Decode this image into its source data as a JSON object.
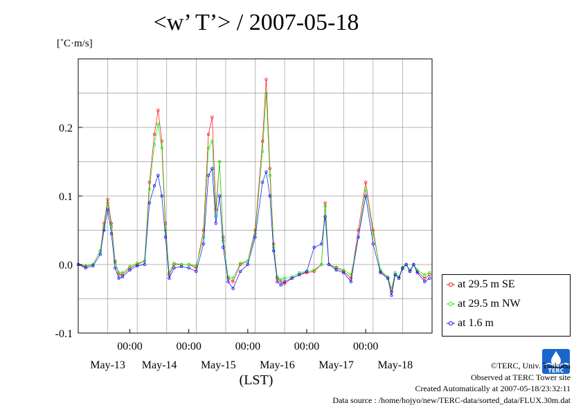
{
  "title": "<w’ T’> / 2007-05-18",
  "unit_label": "[˚C·m/s]",
  "legend": [
    {
      "name": "at 29.5 m SE",
      "color": "#ff0000"
    },
    {
      "name": "at 29.5 m NW",
      "color": "#00ee00"
    },
    {
      "name": "at 1.6 m",
      "color": "#0000ff"
    }
  ],
  "footer": {
    "copyright": "©TERC, Univ. Tsukuba",
    "observed": "Observed at TERC Tower site",
    "created": "Created Automatically at 2007-05-18/23:32:11",
    "source": "Data source : /home/hojyo/new/TERC-data/sorted_data/FLUX.30m.dat"
  },
  "logo_text": "TERC",
  "chart_data": {
    "type": "line",
    "xlabel": "(LST)",
    "ylabel": "",
    "title": "<w’ T’> / 2007-05-18",
    "xlim": [
      0,
      144
    ],
    "ylim": [
      -0.1,
      0.3
    ],
    "yticks": [
      -0.1,
      0.0,
      0.1,
      0.2
    ],
    "ytick_labels": [
      "-0.1",
      "0.0",
      "0.1",
      "0.2"
    ],
    "xticks": [
      {
        "x": 21,
        "time": "00:00",
        "date": "May-14"
      },
      {
        "x": 45,
        "time": "00:00",
        "date": "May-15"
      },
      {
        "x": 69,
        "time": "00:00",
        "date": "May-16"
      },
      {
        "x": 93,
        "time": "00:00",
        "date": "May-17"
      },
      {
        "x": 117,
        "time": "00:00",
        "date": "May-18"
      }
    ],
    "first_date": {
      "x": 12,
      "date": "May-13"
    },
    "grid": true,
    "legend_position": "right",
    "x": [
      0,
      3,
      6,
      9,
      10.5,
      12,
      13.5,
      15,
      16.5,
      18,
      21,
      24,
      27,
      29,
      31,
      32.5,
      34,
      35.5,
      37,
      39,
      42,
      45,
      48,
      51,
      53,
      54.5,
      56,
      57.5,
      59,
      61,
      63,
      66,
      69,
      72,
      75,
      76.5,
      78,
      79.5,
      81,
      82.5,
      84,
      87,
      90,
      93,
      96,
      99,
      100.5,
      102,
      105,
      108,
      111,
      114,
      117,
      120,
      123,
      126,
      127.5,
      129,
      130.5,
      132,
      133.5,
      135,
      136.5,
      138,
      141,
      143
    ],
    "series": [
      {
        "name": "at 29.5 m SE",
        "color": "#ff0000",
        "values": [
          0.0,
          -0.003,
          0.0,
          0.02,
          0.06,
          0.095,
          0.06,
          0.005,
          -0.015,
          -0.015,
          -0.005,
          0.0,
          0.005,
          0.12,
          0.19,
          0.225,
          0.18,
          0.06,
          -0.015,
          0.0,
          0.0,
          0.0,
          -0.005,
          0.05,
          0.19,
          0.215,
          0.08,
          0.15,
          0.04,
          -0.02,
          -0.025,
          0.0,
          0.005,
          0.05,
          0.18,
          0.27,
          0.14,
          0.03,
          -0.02,
          -0.025,
          -0.028,
          -0.02,
          -0.015,
          -0.012,
          -0.01,
          0.0,
          0.09,
          0.0,
          -0.005,
          -0.01,
          -0.02,
          0.05,
          0.12,
          0.05,
          -0.01,
          -0.02,
          -0.04,
          -0.015,
          -0.02,
          -0.005,
          0.0,
          -0.01,
          0.0,
          -0.01,
          -0.02,
          -0.015
        ]
      },
      {
        "name": "at 29.5 m NW",
        "color": "#00ee00",
        "values": [
          0.0,
          -0.002,
          0.0,
          0.02,
          0.055,
          0.09,
          0.055,
          0.003,
          -0.012,
          -0.012,
          -0.003,
          0.002,
          0.005,
          0.11,
          0.175,
          0.205,
          0.17,
          0.05,
          -0.012,
          0.002,
          0.0,
          0.0,
          -0.002,
          0.04,
          0.17,
          0.18,
          0.07,
          0.15,
          0.035,
          -0.018,
          -0.02,
          0.002,
          0.005,
          0.045,
          0.165,
          0.25,
          0.13,
          0.025,
          -0.018,
          -0.022,
          -0.02,
          -0.018,
          -0.012,
          -0.01,
          -0.008,
          0.0,
          0.085,
          0.0,
          -0.004,
          -0.008,
          -0.015,
          0.04,
          0.11,
          0.045,
          -0.008,
          -0.018,
          -0.035,
          -0.012,
          -0.018,
          -0.004,
          0.0,
          -0.008,
          0.0,
          -0.008,
          -0.015,
          -0.012
        ]
      },
      {
        "name": "at 1.6 m",
        "color": "#0000ff",
        "values": [
          0.0,
          -0.005,
          -0.002,
          0.015,
          0.05,
          0.08,
          0.045,
          -0.005,
          -0.02,
          -0.018,
          -0.008,
          -0.002,
          0.0,
          0.09,
          0.115,
          0.13,
          0.1,
          0.04,
          -0.02,
          -0.005,
          -0.003,
          -0.005,
          -0.01,
          0.03,
          0.13,
          0.14,
          0.06,
          0.1,
          0.025,
          -0.025,
          -0.035,
          -0.01,
          0.0,
          0.04,
          0.12,
          0.135,
          0.1,
          0.02,
          -0.025,
          -0.03,
          -0.025,
          -0.02,
          -0.015,
          -0.01,
          0.025,
          0.03,
          0.07,
          0.0,
          -0.008,
          -0.012,
          -0.025,
          0.04,
          0.1,
          0.03,
          -0.012,
          -0.02,
          -0.045,
          -0.015,
          -0.02,
          -0.006,
          0.0,
          -0.01,
          0.0,
          -0.012,
          -0.025,
          -0.02
        ]
      }
    ]
  }
}
